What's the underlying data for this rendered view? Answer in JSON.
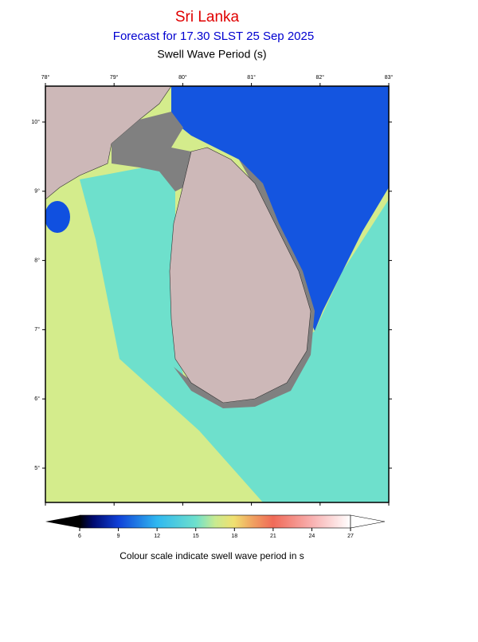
{
  "header": {
    "title": "Sri Lanka",
    "subtitle": "Forecast for  17.30 SLST 25 Sep 2025",
    "variable": "Swell Wave Period (s)"
  },
  "map": {
    "lon_ticks": [
      {
        "value": 78,
        "label": "78°"
      },
      {
        "value": 79,
        "label": "79°"
      },
      {
        "value": 80,
        "label": "80°"
      },
      {
        "value": 81,
        "label": "81°"
      },
      {
        "value": 82,
        "label": "82°"
      },
      {
        "value": 83,
        "label": "83°"
      }
    ],
    "lat_ticks": [
      {
        "value": 10,
        "label": "10°"
      },
      {
        "value": 9,
        "label": "9°"
      },
      {
        "value": 8,
        "label": "8°"
      },
      {
        "value": 7,
        "label": "7°"
      },
      {
        "value": 6,
        "label": "6°"
      },
      {
        "value": 5,
        "label": "5°"
      }
    ]
  },
  "colorbar": {
    "ticks": [
      6,
      9,
      12,
      15,
      18,
      21,
      24,
      27
    ],
    "caption": "Colour scale indicate swell wave period in s"
  }
}
